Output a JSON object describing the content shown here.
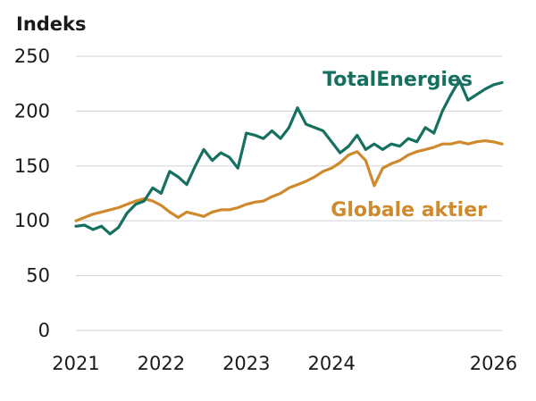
{
  "chart_data": {
    "type": "line",
    "title": "Indeks",
    "xlabel": "",
    "ylabel": "Indeks",
    "xlim": [
      2021,
      2026
    ],
    "ylim": [
      0,
      250
    ],
    "grid": true,
    "x_ticks": [
      "2021",
      "2022",
      "2023",
      "2024",
      "2026"
    ],
    "y_ticks": [
      "0",
      "50",
      "100",
      "150",
      "200",
      "250"
    ],
    "x_tick_values": [
      2021,
      2022,
      2023,
      2024,
      2025.9
    ],
    "y_tick_values": [
      0,
      50,
      100,
      150,
      200,
      250
    ],
    "series": [
      {
        "name": "TotalEnergies",
        "color": "#16705f",
        "label_anchor": [
          2024.8,
          229
        ],
        "x": [
          2021.0,
          2021.1,
          2021.2,
          2021.3,
          2021.4,
          2021.5,
          2021.6,
          2021.7,
          2021.8,
          2021.9,
          2022.0,
          2022.1,
          2022.2,
          2022.3,
          2022.4,
          2022.5,
          2022.6,
          2022.7,
          2022.8,
          2022.9,
          2023.0,
          2023.1,
          2023.2,
          2023.3,
          2023.4,
          2023.5,
          2023.6,
          2023.7,
          2023.8,
          2023.9,
          2024.0,
          2024.1,
          2024.2,
          2024.3,
          2024.4,
          2024.5,
          2024.6,
          2024.7,
          2024.8,
          2024.9,
          2025.0,
          2025.1,
          2025.2,
          2025.3,
          2025.4,
          2025.5,
          2025.6,
          2025.7,
          2025.8,
          2025.9,
          2026.0
        ],
        "values": [
          95,
          96,
          92,
          95,
          88,
          94,
          107,
          115,
          118,
          130,
          125,
          145,
          140,
          133,
          150,
          165,
          155,
          162,
          158,
          148,
          180,
          178,
          175,
          182,
          175,
          185,
          203,
          188,
          185,
          182,
          172,
          162,
          168,
          178,
          165,
          170,
          165,
          170,
          168,
          175,
          172,
          185,
          180,
          200,
          215,
          228,
          210,
          215,
          220,
          224,
          226
        ]
      },
      {
        "name": "Globale aktier",
        "color": "#d08a2e",
        "label_anchor": [
          2024.4,
          110
        ],
        "x": [
          2021.0,
          2021.1,
          2021.2,
          2021.3,
          2021.4,
          2021.5,
          2021.6,
          2021.7,
          2021.8,
          2021.9,
          2022.0,
          2022.1,
          2022.2,
          2022.3,
          2022.4,
          2022.5,
          2022.6,
          2022.7,
          2022.8,
          2022.9,
          2023.0,
          2023.1,
          2023.2,
          2023.3,
          2023.4,
          2023.5,
          2023.6,
          2023.7,
          2023.8,
          2023.9,
          2024.0,
          2024.1,
          2024.2,
          2024.3,
          2024.4,
          2024.5,
          2024.6,
          2024.7,
          2024.8,
          2024.9,
          2025.0,
          2025.1,
          2025.2,
          2025.3,
          2025.4,
          2025.5,
          2025.6,
          2025.7,
          2025.8,
          2025.9,
          2026.0
        ],
        "values": [
          100,
          103,
          106,
          108,
          110,
          112,
          115,
          118,
          120,
          118,
          114,
          108,
          103,
          108,
          106,
          104,
          108,
          110,
          110,
          112,
          115,
          117,
          118,
          122,
          125,
          130,
          133,
          136,
          140,
          145,
          148,
          153,
          160,
          163,
          155,
          132,
          148,
          152,
          155,
          160,
          163,
          165,
          167,
          170,
          170,
          172,
          170,
          172,
          173,
          172,
          170
        ]
      }
    ]
  }
}
